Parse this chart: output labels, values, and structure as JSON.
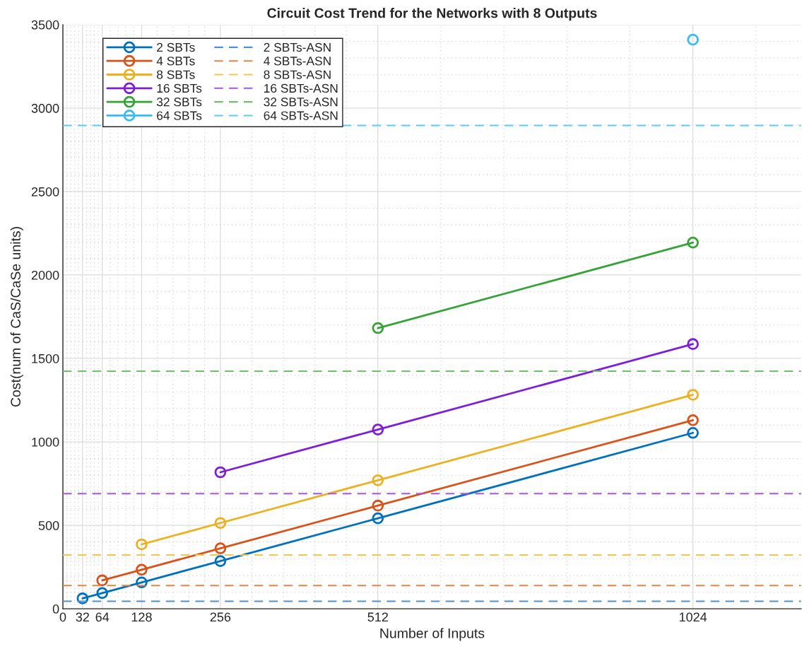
{
  "chart_data": {
    "type": "line",
    "title": "Circuit Cost Trend for the Networks with 8 Outputs",
    "xlabel": "Number of Inputs",
    "ylabel": "Cost(num of CaS/CaSe units)",
    "xlim": [
      0,
      1200
    ],
    "xticks": [
      0,
      32,
      64,
      128,
      256,
      512,
      1024
    ],
    "ylim": [
      0,
      3500
    ],
    "yticks": [
      0,
      500,
      1000,
      1500,
      2000,
      2500,
      3000,
      3500
    ],
    "grid": true,
    "legend": "top left",
    "marker": "circle",
    "line_style": "solid",
    "series": [
      {
        "name": "2 SBTs",
        "color": "#0072bd",
        "x": [
          32,
          64,
          128,
          256,
          512,
          1024
        ],
        "values": [
          62,
          94,
          158,
          286,
          542,
          1054
        ]
      },
      {
        "name": "4 SBTs",
        "color": "#d95319",
        "x": [
          64,
          128,
          256,
          512,
          1024
        ],
        "values": [
          170,
          234,
          362,
          618,
          1130
        ]
      },
      {
        "name": "8 SBTs",
        "color": "#edb120",
        "x": [
          128,
          256,
          512,
          1024
        ],
        "values": [
          386,
          514,
          770,
          1282
        ]
      },
      {
        "name": "16 SBTs",
        "color": "#7e1ed6",
        "x": [
          256,
          512,
          1024
        ],
        "values": [
          818,
          1074,
          1586
        ]
      },
      {
        "name": "32 SBTs",
        "color": "#36a336",
        "x": [
          512,
          1024
        ],
        "values": [
          1682,
          2194
        ]
      },
      {
        "name": "64 SBTs",
        "color": "#38bdee",
        "x": [
          1024
        ],
        "values": [
          3410
        ]
      }
    ],
    "ref_lines": [
      {
        "axis": "y",
        "value": 45,
        "label": "2 SBTs-ASN",
        "color": "#4a93d8",
        "line_style": "dashed"
      },
      {
        "axis": "y",
        "value": 139,
        "label": "4 SBTs-ASN",
        "color": "#ee8044",
        "line_style": "dashed"
      },
      {
        "axis": "y",
        "value": 322,
        "label": "8 SBTs-ASN",
        "color": "#f5c64f",
        "line_style": "dashed"
      },
      {
        "axis": "y",
        "value": 690,
        "label": "16 SBTs-ASN",
        "color": "#a855e8",
        "line_style": "dashed"
      },
      {
        "axis": "y",
        "value": 1424,
        "label": "32 SBTs-ASN",
        "color": "#6cc264",
        "line_style": "dashed"
      },
      {
        "axis": "y",
        "value": 2896,
        "label": "64 SBTs-ASN",
        "color": "#5fcbf0",
        "line_style": "dashed"
      }
    ]
  }
}
